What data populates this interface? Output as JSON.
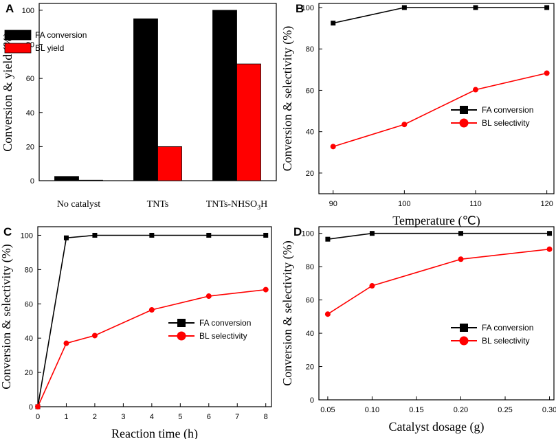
{
  "colors": {
    "fa": "#000000",
    "bl": "#ff0000"
  },
  "chart_data": [
    {
      "panel": "A",
      "type": "bar",
      "categories": [
        "No catalyst",
        "TNTs",
        "TNTs-NHSO3H"
      ],
      "category_label_parts": [
        [
          "No catalyst"
        ],
        [
          "TNTs"
        ],
        [
          "TNTs-NHSO",
          "3",
          "H"
        ]
      ],
      "series": [
        {
          "name": "FA conversion",
          "values": [
            2.5,
            95,
            100
          ]
        },
        {
          "name": "BL yield",
          "values": [
            0.3,
            20,
            68.5
          ]
        }
      ],
      "ylabel": "Conversion & yield (%)",
      "xlabel": "",
      "ylim": [
        0,
        104
      ],
      "yticks": [
        0,
        20,
        40,
        60,
        80,
        100
      ],
      "legend": "top-left"
    },
    {
      "panel": "B",
      "type": "line",
      "x": [
        90,
        100,
        110,
        120
      ],
      "series": [
        {
          "name": "FA conversion",
          "values": [
            92.5,
            100,
            100,
            100
          ]
        },
        {
          "name": "BL selectivity",
          "values": [
            32.8,
            43.5,
            60.3,
            68.3
          ]
        }
      ],
      "xlabel": "Temperature (℃)",
      "ylabel": "Conversion & selectivity (%)",
      "xlim": [
        88,
        121
      ],
      "ylim": [
        10,
        102
      ],
      "xticks": [
        90,
        100,
        110,
        120
      ],
      "yticks": [
        20,
        40,
        60,
        80,
        100
      ],
      "legend": "center-right"
    },
    {
      "panel": "C",
      "type": "line",
      "x": [
        0,
        1,
        2,
        4,
        6,
        8
      ],
      "series": [
        {
          "name": "FA conversion",
          "values": [
            0,
            98.5,
            100,
            100,
            100,
            100
          ]
        },
        {
          "name": "BL selectivity",
          "values": [
            0,
            37,
            41.5,
            56.5,
            64.5,
            68.3
          ]
        }
      ],
      "xlabel": "Reaction time (h)",
      "ylabel": "Conversion & selectivity (%)",
      "xlim": [
        0,
        8.2
      ],
      "ylim": [
        0,
        105
      ],
      "xticks": [
        0,
        1,
        2,
        3,
        4,
        5,
        6,
        7,
        8
      ],
      "yticks": [
        0,
        20,
        40,
        60,
        80,
        100
      ],
      "legend": "center-right"
    },
    {
      "panel": "D",
      "type": "line",
      "x": [
        0.05,
        0.1,
        0.2,
        0.3
      ],
      "series": [
        {
          "name": "FA conversion",
          "values": [
            96.5,
            100,
            100,
            100
          ]
        },
        {
          "name": "BL selectivity",
          "values": [
            51.5,
            68.5,
            84.5,
            90.5
          ]
        }
      ],
      "xlabel": "Catalyst dosage (g)",
      "ylabel": "Conversion & selectivity (%)",
      "xlim": [
        0.04,
        0.305
      ],
      "ylim": [
        0,
        104
      ],
      "xticks": [
        0.05,
        0.1,
        0.15,
        0.2,
        0.25,
        0.3
      ],
      "xtick_labels": [
        "0.05",
        "0.10",
        "0.15",
        "0.20",
        "0.25",
        "0.30"
      ],
      "yticks": [
        0,
        20,
        40,
        60,
        80,
        100
      ],
      "legend": "center-right"
    }
  ]
}
